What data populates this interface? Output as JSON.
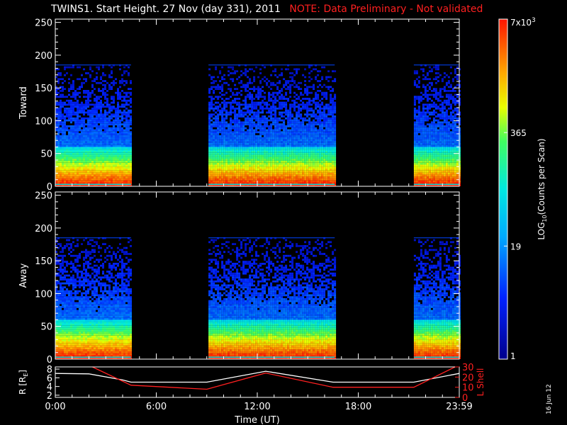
{
  "title": {
    "main": "TWINS1. Start Height. 27 Nov (day 331), 2011",
    "note": "NOTE: Data Preliminary - Not validated"
  },
  "datestamp": "16 Jun 12",
  "chart_data": [
    {
      "type": "heatmap",
      "name": "Toward",
      "ylabel": "Toward",
      "ylim": [
        0,
        255
      ],
      "yticks": [
        "0",
        "50",
        "100",
        "150",
        "200",
        "250"
      ],
      "xlim_hours": [
        0,
        24
      ],
      "data_intervals_hours": [
        [
          0,
          4.5
        ],
        [
          9.1,
          16.6
        ],
        [
          21.3,
          24
        ]
      ],
      "data_ceiling": 185
    },
    {
      "type": "heatmap",
      "name": "Away",
      "ylabel": "Away",
      "ylim": [
        0,
        255
      ],
      "yticks": [
        "0",
        "50",
        "100",
        "150",
        "200",
        "250"
      ],
      "xlim_hours": [
        0,
        24
      ],
      "data_intervals_hours": [
        [
          0,
          4.5
        ],
        [
          9.1,
          16.6
        ],
        [
          21.3,
          24
        ]
      ],
      "data_ceiling": 185
    },
    {
      "type": "line",
      "name": "orbit",
      "xlabel": "Time (UT)",
      "xticks": [
        "0:00",
        "6:00",
        "12:00",
        "18:00",
        "23:59"
      ],
      "left_axis": {
        "label": "R [R",
        "label_sub": "E",
        "label_end": "]",
        "ticks": [
          "2",
          "4",
          "6",
          "8"
        ],
        "ylim": [
          1.5,
          8.5
        ]
      },
      "right_axis": {
        "label": "L Shell",
        "ticks": [
          "0",
          "10",
          "20",
          "30"
        ],
        "ylim": [
          0,
          30
        ]
      },
      "series": [
        {
          "axis": "left",
          "color": "#ffffff",
          "x": [
            0,
            2,
            4,
            4.5,
            9,
            12.5,
            16.5,
            21.3,
            24
          ],
          "y": [
            7.0,
            6.9,
            5.5,
            5.0,
            5.0,
            7.5,
            5.0,
            5.0,
            7.0
          ]
        },
        {
          "axis": "right",
          "color": "#ff2020",
          "x": [
            2.2,
            4.5,
            9,
            12.5,
            16.5,
            21.3,
            24
          ],
          "y": [
            30,
            12,
            8,
            24,
            10,
            10,
            32
          ]
        }
      ]
    }
  ],
  "colorbar": {
    "label": "LOG",
    "label_sub": "10",
    "label_end": "(Counts per Scan)",
    "tick_labels": [
      "1",
      "19",
      "365",
      "7x10"
    ],
    "top_exp": "3",
    "tick_values": [
      1,
      19,
      365,
      7000
    ]
  },
  "colors": {
    "note": "#ff2020",
    "axes": "#ffffff",
    "background": "#000000"
  }
}
